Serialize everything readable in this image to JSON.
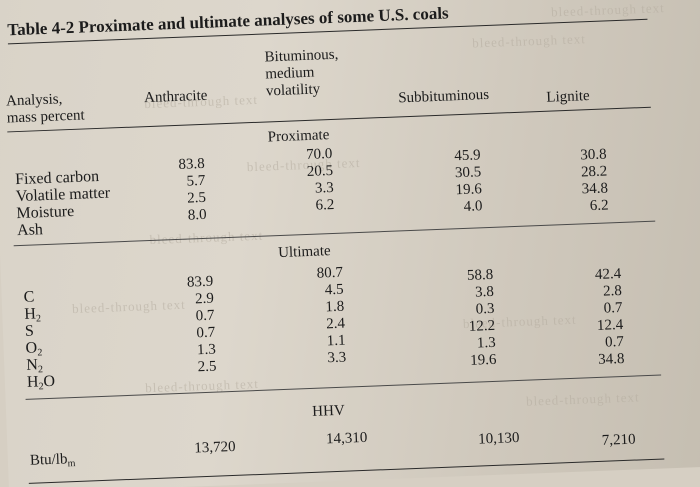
{
  "table": {
    "title": "Table 4-2 Proximate and ultimate analyses of some U.S. coals",
    "header": {
      "analysis_line1": "Analysis,",
      "analysis_line2": "mass percent",
      "anthracite": "Anthracite",
      "bituminous_line1": "Bituminous,",
      "bituminous_line2": "medium",
      "bituminous_line3": "volatility",
      "subbituminous": "Subbituminous",
      "lignite": "Lignite"
    },
    "proximate": {
      "heading": "Proximate",
      "labels": [
        "Fixed carbon",
        "Volatile matter",
        "Moisture",
        "Ash"
      ],
      "anthracite": [
        "83.8",
        "5.7",
        "2.5",
        "8.0"
      ],
      "bituminous": [
        "70.0",
        "20.5",
        "3.3",
        "6.2"
      ],
      "subbituminous": [
        "45.9",
        "30.5",
        "19.6",
        "4.0"
      ],
      "lignite": [
        "30.8",
        "28.2",
        "34.8",
        "6.2"
      ]
    },
    "ultimate": {
      "heading": "Ultimate",
      "labels": {
        "c": "C",
        "h_main": "H",
        "h_sub": "2",
        "s": "S",
        "o_main": "O",
        "o_sub": "2",
        "n_main": "N",
        "n_sub": "2",
        "h2o_h": "H",
        "h2o_sub": "2",
        "h2o_o": "O"
      },
      "anthracite": [
        "83.9",
        "2.9",
        "0.7",
        "0.7",
        "1.3",
        "2.5"
      ],
      "bituminous": [
        "80.7",
        "4.5",
        "1.8",
        "2.4",
        "1.1",
        "3.3"
      ],
      "subbituminous": [
        "58.8",
        "3.8",
        "0.3",
        "12.2",
        "1.3",
        "19.6"
      ],
      "lignite": [
        "42.4",
        "2.8",
        "0.7",
        "12.4",
        "0.7",
        "34.8"
      ]
    },
    "hhv": {
      "heading": "HHV",
      "label_main": "Btu/lb",
      "label_sub": "m",
      "anthracite": "13,720",
      "bituminous": "14,310",
      "subbituminous": "10,130",
      "lignite": "7,210"
    }
  }
}
